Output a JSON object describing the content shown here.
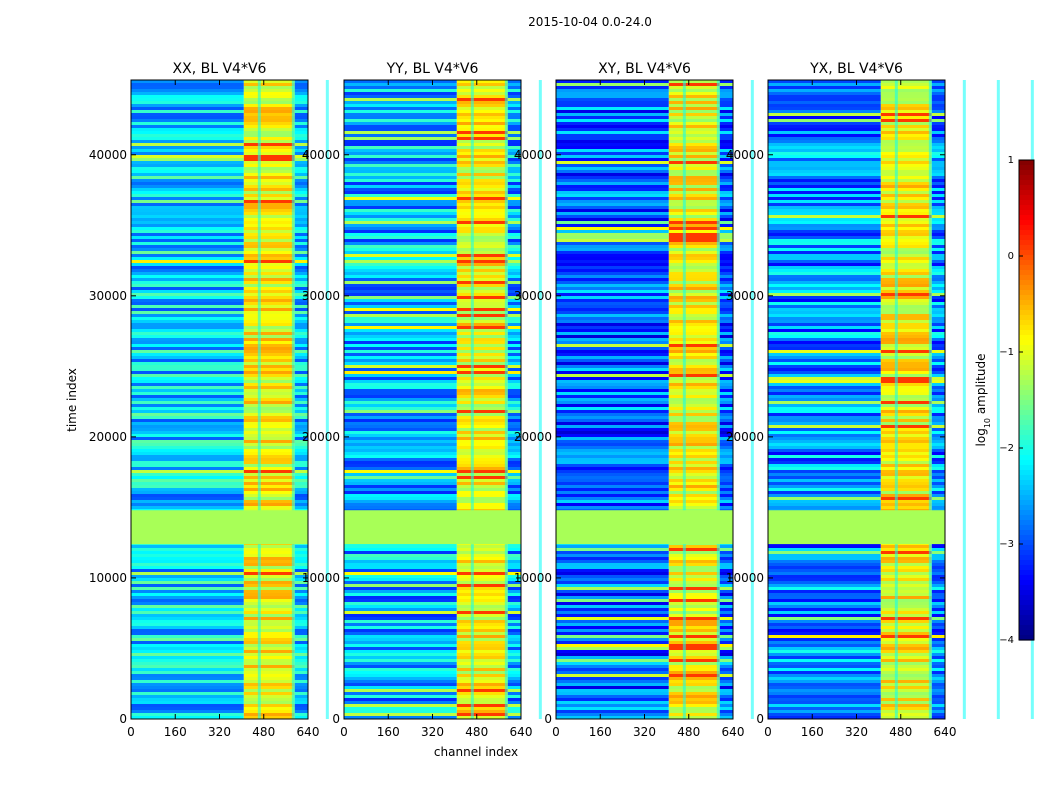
{
  "figure_title": "2015-10-04 0.0-24.0",
  "xlabel": "channel index",
  "ylabel": "time index",
  "colorbar": {
    "label_prefix": "log",
    "label_sub": "10",
    "label_suffix": " amplitude",
    "range": [
      -4,
      1
    ],
    "ticks": [
      1,
      0,
      -1,
      -2,
      -3,
      -4
    ],
    "tick_labels": [
      "1",
      "0",
      "−1",
      "−2",
      "−3",
      "−4"
    ],
    "colormap": "jet"
  },
  "chart_data": {
    "type": "heatmap",
    "xlim": [
      0,
      640
    ],
    "ylim": [
      0,
      45300
    ],
    "x_ticks": [
      0,
      160,
      320,
      480,
      640
    ],
    "x_tick_labels": [
      "0",
      "160",
      "320",
      "480",
      "640"
    ],
    "y_ticks": [
      0,
      10000,
      20000,
      30000,
      40000
    ],
    "y_tick_labels": [
      "0",
      "10000",
      "20000",
      "30000",
      "40000"
    ],
    "flagged_time_range": [
      12400,
      14800
    ],
    "flagged_value": -1.3,
    "high_channel_range": [
      408,
      592
    ],
    "panels": [
      {
        "title": "XX, BL V4*V6",
        "baseline_level": -2.3,
        "seed": 11
      },
      {
        "title": "YY, BL V4*V6",
        "baseline_level": -2.5,
        "seed": 23
      },
      {
        "title": "XY, BL V4*V6",
        "baseline_level": -2.9,
        "seed": 37
      },
      {
        "title": "YX, BL V4*V6",
        "baseline_level": -2.7,
        "seed": 53
      }
    ]
  }
}
